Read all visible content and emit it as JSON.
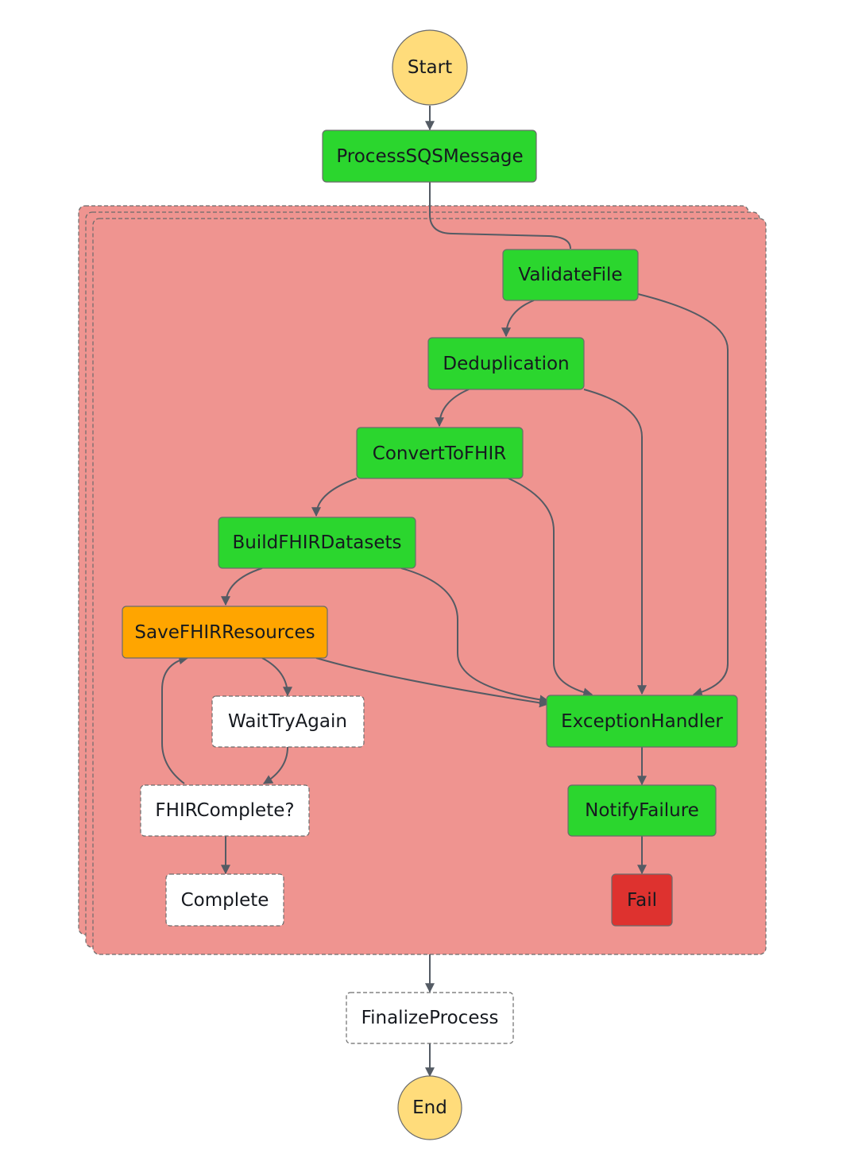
{
  "colors": {
    "success": "#2bd62e",
    "caught_error": "#ffa500",
    "failed": "#de322f",
    "not_executed": "#ffffff",
    "terminal": "#ffdc7b",
    "map_background": "#ef9490",
    "edge": "#545b64",
    "border": "#6b6b6b"
  },
  "states": {
    "start": {
      "label": "Start"
    },
    "process_sqs_message": {
      "label": "ProcessSQSMessage"
    },
    "validate_file": {
      "label": "ValidateFile"
    },
    "deduplication": {
      "label": "Deduplication"
    },
    "convert_to_fhir": {
      "label": "ConvertToFHIR"
    },
    "build_fhir_datasets": {
      "label": "BuildFHIRDatasets"
    },
    "save_fhir_resources": {
      "label": "SaveFHIRResources"
    },
    "wait_try_again": {
      "label": "WaitTryAgain"
    },
    "fhir_complete": {
      "label": "FHIRComplete?"
    },
    "complete": {
      "label": "Complete"
    },
    "exception_handler": {
      "label": "ExceptionHandler"
    },
    "notify_failure": {
      "label": "NotifyFailure"
    },
    "fail": {
      "label": "Fail"
    },
    "finalize_process": {
      "label": "FinalizeProcess"
    },
    "end": {
      "label": "End"
    }
  },
  "nodes": [
    {
      "id": "start",
      "status": "terminal"
    },
    {
      "id": "process_sqs_message",
      "status": "success"
    },
    {
      "id": "validate_file",
      "status": "success"
    },
    {
      "id": "deduplication",
      "status": "success"
    },
    {
      "id": "convert_to_fhir",
      "status": "success"
    },
    {
      "id": "build_fhir_datasets",
      "status": "success"
    },
    {
      "id": "save_fhir_resources",
      "status": "caught_error"
    },
    {
      "id": "wait_try_again",
      "status": "not_executed"
    },
    {
      "id": "fhir_complete",
      "status": "not_executed"
    },
    {
      "id": "complete",
      "status": "not_executed"
    },
    {
      "id": "exception_handler",
      "status": "success"
    },
    {
      "id": "notify_failure",
      "status": "success"
    },
    {
      "id": "fail",
      "status": "failed"
    },
    {
      "id": "finalize_process",
      "status": "not_executed"
    },
    {
      "id": "end",
      "status": "terminal"
    }
  ],
  "edges": [
    {
      "from": "start",
      "to": "process_sqs_message"
    },
    {
      "from": "process_sqs_message",
      "to": "validate_file"
    },
    {
      "from": "validate_file",
      "to": "deduplication"
    },
    {
      "from": "validate_file",
      "to": "exception_handler"
    },
    {
      "from": "deduplication",
      "to": "convert_to_fhir"
    },
    {
      "from": "deduplication",
      "to": "exception_handler"
    },
    {
      "from": "convert_to_fhir",
      "to": "build_fhir_datasets"
    },
    {
      "from": "convert_to_fhir",
      "to": "exception_handler"
    },
    {
      "from": "build_fhir_datasets",
      "to": "save_fhir_resources"
    },
    {
      "from": "build_fhir_datasets",
      "to": "exception_handler"
    },
    {
      "from": "save_fhir_resources",
      "to": "wait_try_again"
    },
    {
      "from": "save_fhir_resources",
      "to": "exception_handler"
    },
    {
      "from": "wait_try_again",
      "to": "fhir_complete"
    },
    {
      "from": "fhir_complete",
      "to": "save_fhir_resources"
    },
    {
      "from": "fhir_complete",
      "to": "complete"
    },
    {
      "from": "exception_handler",
      "to": "notify_failure"
    },
    {
      "from": "notify_failure",
      "to": "fail"
    },
    {
      "from": "map_container",
      "to": "finalize_process"
    },
    {
      "from": "finalize_process",
      "to": "end"
    }
  ]
}
